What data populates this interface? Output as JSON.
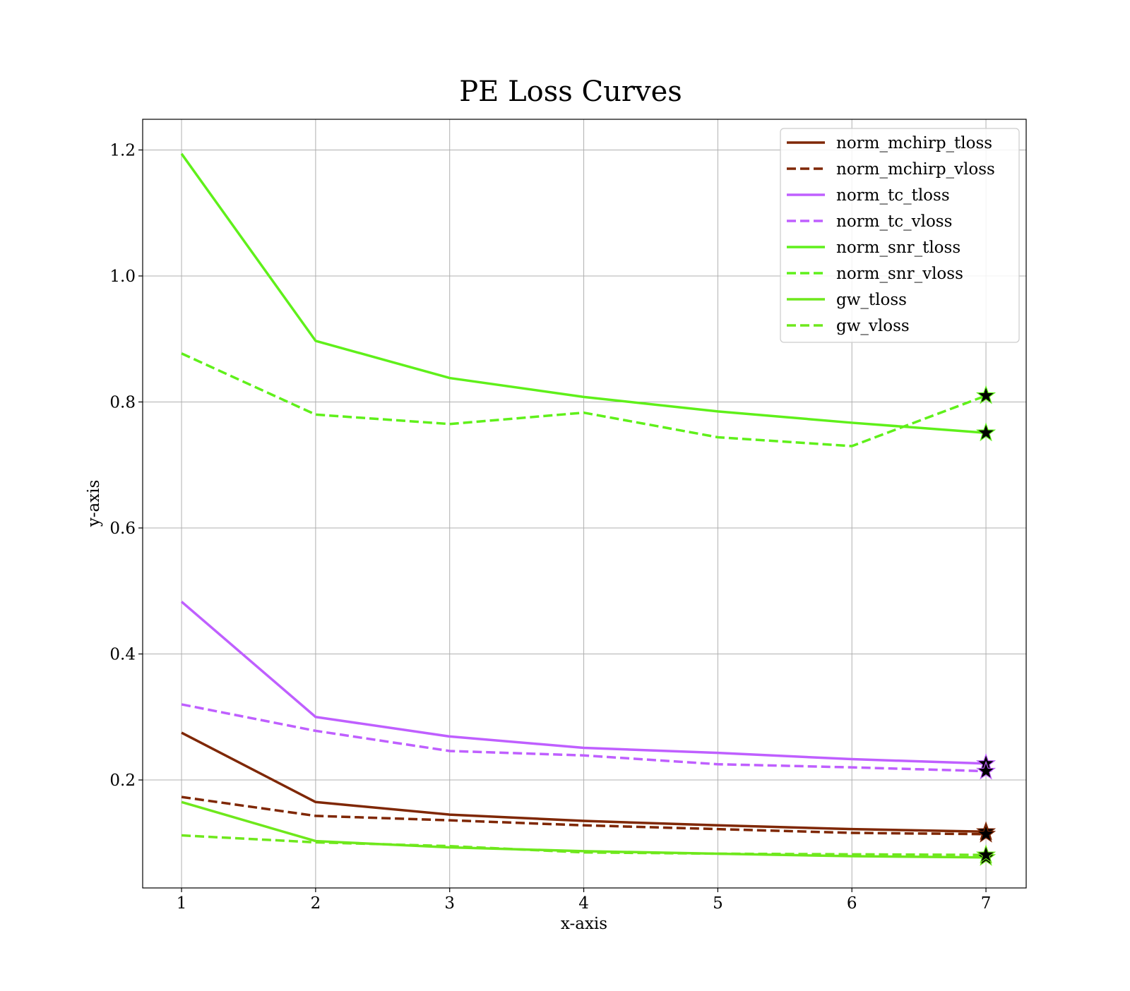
{
  "chart_data": {
    "type": "line",
    "title": "PE Loss Curves",
    "xlabel": "x-axis",
    "ylabel": "y-axis",
    "xlim": [
      0.71,
      7.3
    ],
    "ylim": [
      0.0286,
      1.2487
    ],
    "x": [
      1,
      2,
      3,
      4,
      5,
      6,
      7
    ],
    "xticks": [
      "1",
      "2",
      "3",
      "4",
      "5",
      "6",
      "7"
    ],
    "yticks": [
      {
        "value": 0.2,
        "label": "0.2"
      },
      {
        "value": 0.4,
        "label": "0.4"
      },
      {
        "value": 0.6,
        "label": "0.6"
      },
      {
        "value": 0.8,
        "label": "0.8"
      },
      {
        "value": 1.0,
        "label": "1.0"
      },
      {
        "value": 1.2,
        "label": "1.2"
      }
    ],
    "grid": true,
    "legend_position": "top-right",
    "end_markers": "black star at the last point of each series",
    "series": [
      {
        "name": "norm_mchirp_tloss",
        "color": "#7f2704",
        "dash": "solid",
        "values": [
          0.275,
          0.165,
          0.145,
          0.135,
          0.128,
          0.122,
          0.118
        ]
      },
      {
        "name": "norm_mchirp_vloss",
        "color": "#7f2704",
        "dash": "dashed",
        "values": [
          0.173,
          0.143,
          0.136,
          0.128,
          0.122,
          0.116,
          0.114
        ]
      },
      {
        "name": "norm_tc_tloss",
        "color": "#bf5fff",
        "dash": "solid",
        "values": [
          0.483,
          0.3,
          0.269,
          0.251,
          0.243,
          0.233,
          0.226
        ]
      },
      {
        "name": "norm_tc_vloss",
        "color": "#bf5fff",
        "dash": "dashed",
        "values": [
          0.32,
          0.278,
          0.246,
          0.239,
          0.225,
          0.22,
          0.214
        ]
      },
      {
        "name": "norm_snr_tloss",
        "color": "#5ff01a",
        "dash": "solid",
        "values": [
          1.194,
          0.897,
          0.838,
          0.808,
          0.785,
          0.767,
          0.751
        ]
      },
      {
        "name": "norm_snr_vloss",
        "color": "#5ff01a",
        "dash": "dashed",
        "values": [
          0.877,
          0.78,
          0.765,
          0.783,
          0.744,
          0.73,
          0.81
        ]
      },
      {
        "name": "gw_tloss",
        "color": "#6ee81c",
        "dash": "solid",
        "values": [
          0.165,
          0.103,
          0.093,
          0.087,
          0.083,
          0.079,
          0.077
        ]
      },
      {
        "name": "gw_vloss",
        "color": "#6ee81c",
        "dash": "dashed",
        "values": [
          0.112,
          0.101,
          0.095,
          0.085,
          0.083,
          0.082,
          0.081
        ]
      }
    ]
  }
}
